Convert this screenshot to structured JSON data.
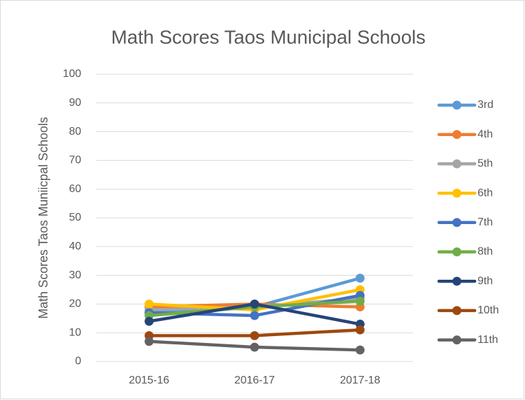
{
  "chart_data": {
    "type": "line",
    "title": "Math Scores Taos Municipal Schools",
    "y_label": "Math Scores Taos Muniicpal Schools",
    "categories": [
      "2015-16",
      "2016-17",
      "2017-18"
    ],
    "series": [
      {
        "name": "3rd",
        "color": "#5b9bd5",
        "values": [
          17,
          19,
          29
        ]
      },
      {
        "name": "4th",
        "color": "#ed7d31",
        "values": [
          19,
          20,
          19
        ]
      },
      {
        "name": "5th",
        "color": "#a5a5a5",
        "values": [
          18,
          19,
          22
        ]
      },
      {
        "name": "6th",
        "color": "#ffc000",
        "values": [
          20,
          18,
          25
        ]
      },
      {
        "name": "7th",
        "color": "#4472c4",
        "values": [
          17,
          16,
          23
        ]
      },
      {
        "name": "8th",
        "color": "#70ad47",
        "values": [
          16,
          19,
          21
        ]
      },
      {
        "name": "9th",
        "color": "#264478",
        "values": [
          14,
          20,
          13
        ]
      },
      {
        "name": "10th",
        "color": "#9e480e",
        "values": [
          9,
          9,
          11
        ]
      },
      {
        "name": "11th",
        "color": "#636363",
        "values": [
          7,
          5,
          4
        ]
      }
    ],
    "ylim": [
      0,
      100
    ],
    "yticks": [
      0,
      10,
      20,
      30,
      40,
      50,
      60,
      70,
      80,
      90,
      100
    ],
    "grid": true,
    "legend": "right"
  }
}
